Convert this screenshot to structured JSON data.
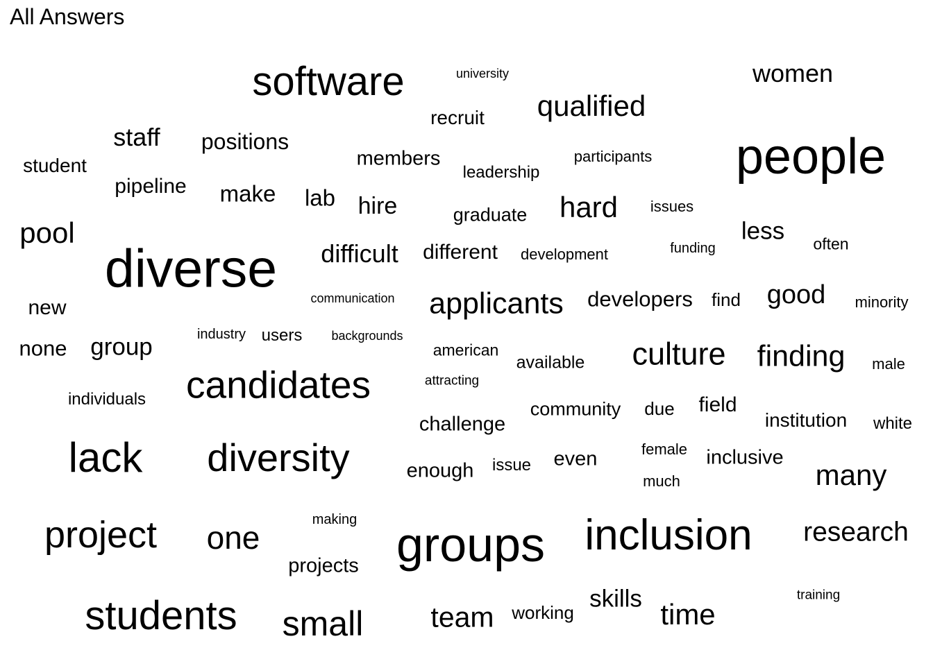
{
  "title": "All Answers",
  "chart_data": {
    "type": "wordcloud",
    "title": "All Answers",
    "words": [
      {
        "text": "software",
        "weight": 58
      },
      {
        "text": "university",
        "weight": 18
      },
      {
        "text": "women",
        "weight": 36
      },
      {
        "text": "recruit",
        "weight": 28
      },
      {
        "text": "qualified",
        "weight": 42
      },
      {
        "text": "staff",
        "weight": 36
      },
      {
        "text": "positions",
        "weight": 32
      },
      {
        "text": "members",
        "weight": 29
      },
      {
        "text": "participants",
        "weight": 22
      },
      {
        "text": "people",
        "weight": 72
      },
      {
        "text": "student",
        "weight": 28
      },
      {
        "text": "leadership",
        "weight": 24
      },
      {
        "text": "pipeline",
        "weight": 30
      },
      {
        "text": "make",
        "weight": 33
      },
      {
        "text": "lab",
        "weight": 33
      },
      {
        "text": "hire",
        "weight": 34
      },
      {
        "text": "graduate",
        "weight": 27
      },
      {
        "text": "hard",
        "weight": 42
      },
      {
        "text": "issues",
        "weight": 22
      },
      {
        "text": "pool",
        "weight": 42
      },
      {
        "text": "less",
        "weight": 35
      },
      {
        "text": "diverse",
        "weight": 77
      },
      {
        "text": "difficult",
        "weight": 36
      },
      {
        "text": "different",
        "weight": 30
      },
      {
        "text": "development",
        "weight": 22
      },
      {
        "text": "funding",
        "weight": 20
      },
      {
        "text": "often",
        "weight": 23
      },
      {
        "text": "communication",
        "weight": 18
      },
      {
        "text": "applicants",
        "weight": 43
      },
      {
        "text": "developers",
        "weight": 31
      },
      {
        "text": "find",
        "weight": 26
      },
      {
        "text": "good",
        "weight": 38
      },
      {
        "text": "minority",
        "weight": 22
      },
      {
        "text": "new",
        "weight": 30
      },
      {
        "text": "industry",
        "weight": 20
      },
      {
        "text": "users",
        "weight": 24
      },
      {
        "text": "backgrounds",
        "weight": 18
      },
      {
        "text": "none",
        "weight": 31
      },
      {
        "text": "group",
        "weight": 35
      },
      {
        "text": "american",
        "weight": 23
      },
      {
        "text": "available",
        "weight": 25
      },
      {
        "text": "culture",
        "weight": 45
      },
      {
        "text": "finding",
        "weight": 43
      },
      {
        "text": "male",
        "weight": 22
      },
      {
        "text": "attracting",
        "weight": 19
      },
      {
        "text": "candidates",
        "weight": 55
      },
      {
        "text": "individuals",
        "weight": 24
      },
      {
        "text": "community",
        "weight": 27
      },
      {
        "text": "due",
        "weight": 26
      },
      {
        "text": "field",
        "weight": 30
      },
      {
        "text": "institution",
        "weight": 28
      },
      {
        "text": "white",
        "weight": 24
      },
      {
        "text": "challenge",
        "weight": 29
      },
      {
        "text": "lack",
        "weight": 60
      },
      {
        "text": "diversity",
        "weight": 56
      },
      {
        "text": "female",
        "weight": 22
      },
      {
        "text": "inclusive",
        "weight": 29
      },
      {
        "text": "enough",
        "weight": 29
      },
      {
        "text": "issue",
        "weight": 24
      },
      {
        "text": "even",
        "weight": 29
      },
      {
        "text": "much",
        "weight": 22
      },
      {
        "text": "many",
        "weight": 42
      },
      {
        "text": "making",
        "weight": 20
      },
      {
        "text": "project",
        "weight": 54
      },
      {
        "text": "one",
        "weight": 46
      },
      {
        "text": "groups",
        "weight": 70
      },
      {
        "text": "inclusion",
        "weight": 62
      },
      {
        "text": "research",
        "weight": 39
      },
      {
        "text": "projects",
        "weight": 29
      },
      {
        "text": "training",
        "weight": 19
      },
      {
        "text": "skills",
        "weight": 35
      },
      {
        "text": "students",
        "weight": 58
      },
      {
        "text": "small",
        "weight": 50
      },
      {
        "text": "team",
        "weight": 41
      },
      {
        "text": "working",
        "weight": 26
      },
      {
        "text": "time",
        "weight": 42
      }
    ]
  }
}
